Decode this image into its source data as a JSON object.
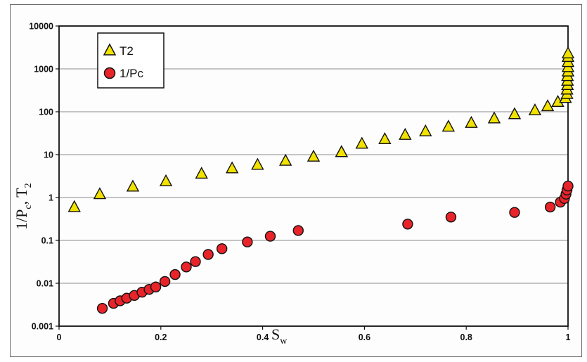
{
  "chart_data": {
    "type": "scatter",
    "xlabel": "S",
    "xlabel_sub": "w",
    "ylabel_parts": [
      "1/P",
      "c",
      ", T",
      "2"
    ],
    "xlim": [
      0,
      1
    ],
    "ylim": [
      0.001,
      10000
    ],
    "yscale": "log",
    "grid": "horizontal",
    "legend_position": "top-left",
    "x_ticks": [
      {
        "v": 0,
        "label": "0"
      },
      {
        "v": 0.2,
        "label": "0.2"
      },
      {
        "v": 0.4,
        "label": "0.4"
      },
      {
        "v": 0.6,
        "label": "0.6"
      },
      {
        "v": 0.8,
        "label": "0.8"
      },
      {
        "v": 1,
        "label": "1"
      }
    ],
    "y_ticks": [
      {
        "v": 0.001,
        "label": "0.001"
      },
      {
        "v": 0.01,
        "label": "0.01"
      },
      {
        "v": 0.1,
        "label": "0.1"
      },
      {
        "v": 1,
        "label": "1"
      },
      {
        "v": 10,
        "label": "10"
      },
      {
        "v": 100,
        "label": "100"
      },
      {
        "v": 1000,
        "label": "1000"
      },
      {
        "v": 10000,
        "label": "10000"
      }
    ],
    "series": [
      {
        "name": "T2",
        "name_base": "T",
        "name_sub": "2",
        "marker": "triangle",
        "color": "#f2e200",
        "points": [
          [
            0.03,
            0.6
          ],
          [
            0.08,
            1.2
          ],
          [
            0.145,
            1.8
          ],
          [
            0.21,
            2.4
          ],
          [
            0.28,
            3.6
          ],
          [
            0.34,
            4.8
          ],
          [
            0.39,
            5.8
          ],
          [
            0.445,
            7.2
          ],
          [
            0.5,
            9
          ],
          [
            0.555,
            11.5
          ],
          [
            0.555,
            11.5
          ],
          [
            0.595,
            18
          ],
          [
            0.64,
            23
          ],
          [
            0.68,
            29
          ],
          [
            0.72,
            35
          ],
          [
            0.765,
            45
          ],
          [
            0.81,
            55
          ],
          [
            0.855,
            70
          ],
          [
            0.895,
            88
          ],
          [
            0.935,
            108
          ],
          [
            0.96,
            135
          ],
          [
            0.98,
            170
          ],
          [
            0.995,
            210
          ],
          [
            0.998,
            260
          ],
          [
            0.998,
            330
          ],
          [
            0.999,
            420
          ],
          [
            0.999,
            530
          ],
          [
            0.999,
            680
          ],
          [
            1.0,
            870
          ],
          [
            1.0,
            1100
          ],
          [
            1.0,
            1450
          ],
          [
            1.0,
            1900
          ],
          [
            1.0,
            2300
          ]
        ]
      },
      {
        "name": "1/Pc",
        "name_base": "1/Pc",
        "name_sub": "",
        "marker": "circle",
        "color": "#e8242a",
        "points": [
          [
            0.085,
            0.0026
          ],
          [
            0.107,
            0.0034
          ],
          [
            0.12,
            0.0039
          ],
          [
            0.133,
            0.0045
          ],
          [
            0.148,
            0.0052
          ],
          [
            0.163,
            0.0062
          ],
          [
            0.177,
            0.0072
          ],
          [
            0.19,
            0.0082
          ],
          [
            0.208,
            0.011
          ],
          [
            0.228,
            0.016
          ],
          [
            0.25,
            0.024
          ],
          [
            0.268,
            0.032
          ],
          [
            0.293,
            0.047
          ],
          [
            0.32,
            0.064
          ],
          [
            0.37,
            0.092
          ],
          [
            0.415,
            0.125
          ],
          [
            0.47,
            0.17
          ],
          [
            0.685,
            0.24
          ],
          [
            0.77,
            0.35
          ],
          [
            0.895,
            0.45
          ],
          [
            0.965,
            0.6
          ],
          [
            0.985,
            0.78
          ],
          [
            0.993,
            0.95
          ],
          [
            0.996,
            1.2
          ],
          [
            0.998,
            1.5
          ],
          [
            1.0,
            1.85
          ]
        ]
      }
    ]
  }
}
